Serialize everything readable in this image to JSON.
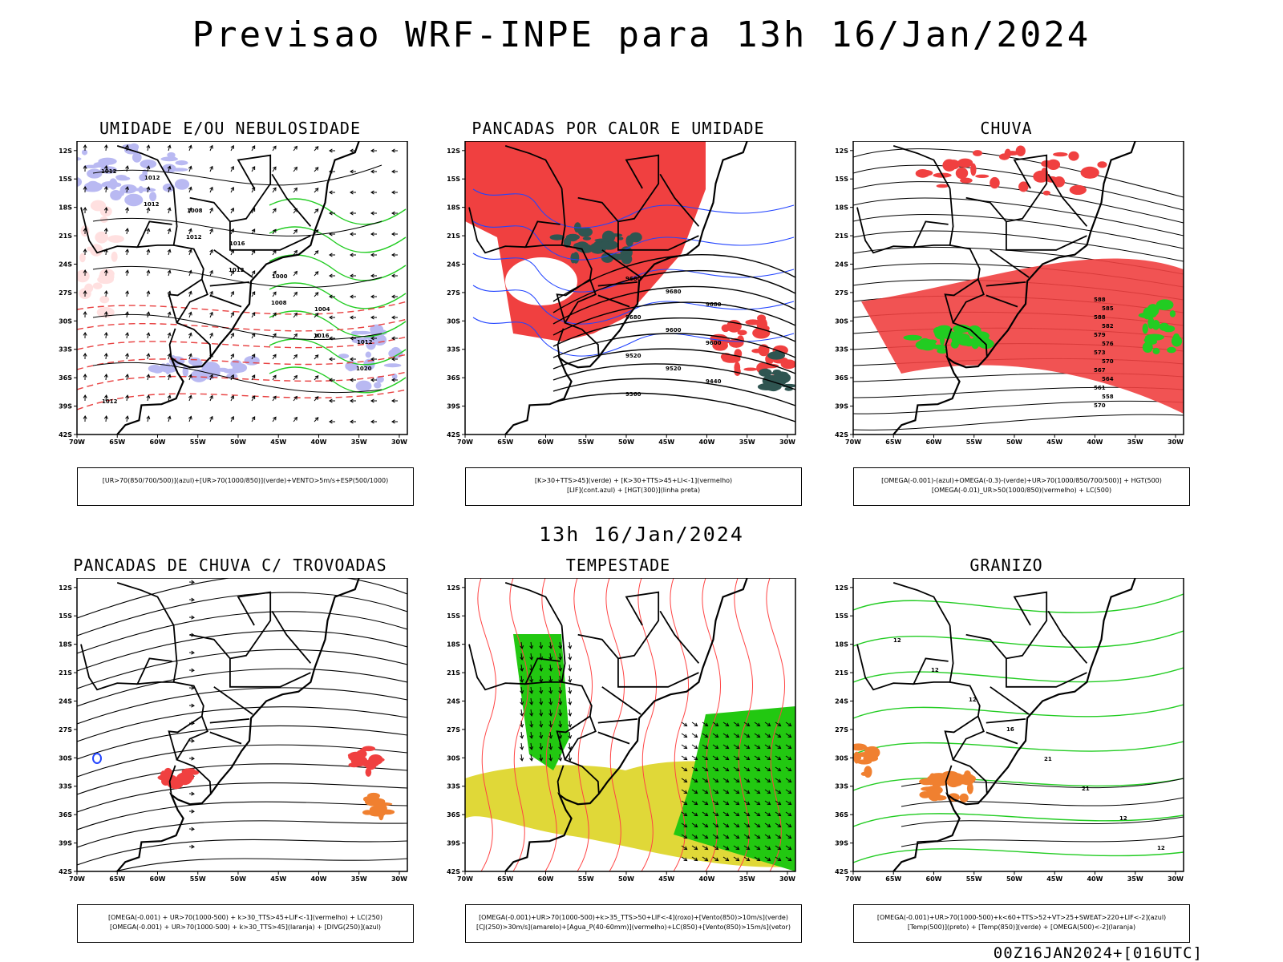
{
  "header": {
    "title": "Previsao WRF-INPE  para 13h 16/Jan/2024",
    "subtitle": "13h 16/Jan/2024",
    "footer": "00Z16JAN2024+[016UTC]"
  },
  "axes": {
    "lat_labels": [
      "12S",
      "15S",
      "18S",
      "21S",
      "24S",
      "27S",
      "30S",
      "33S",
      "36S",
      "39S",
      "42S"
    ],
    "lon_labels": [
      "70W",
      "65W",
      "60W",
      "55W",
      "50W",
      "45W",
      "40W",
      "35W",
      "30W"
    ]
  },
  "panels": [
    {
      "id": "umidade",
      "title": "UMIDADE E/OU NEBULOSIDADE",
      "legend": [
        "[UR>70(850/700/500)](azul)+[UR>70(1000/850)](verde)+VENTO>5m/s+ESP(500/1000)"
      ],
      "contour_labels": [
        "1012",
        "1012",
        "1012",
        "1012",
        "1008",
        "1016",
        "1020",
        "1012",
        "1012",
        "1008",
        "1016",
        "1000",
        "1004",
        "1012"
      ]
    },
    {
      "id": "pancadas-calor",
      "title": "PANCADAS POR CALOR E UMIDADE",
      "legend": [
        "[K>30+TTS>45](verde) + [K>30+TTS>45+LI<-1](vermelho)",
        "[LIF](cont.azul) + [HGT(300)](linha preta)"
      ],
      "contour_labels": [
        "9680",
        "9680",
        "9680",
        "9680",
        "9600",
        "9600",
        "9520",
        "9520",
        "9440",
        "9360",
        "9280",
        "9200",
        "9680"
      ]
    },
    {
      "id": "chuva",
      "title": "CHUVA",
      "legend": [
        "[OMEGA(-0.001)-(azul)+OMEGA(-0.3)-(verde)+UR>70(1000/850/700/500)] + HGT(500)",
        "[OMEGA(-0.01)_UR>50(1000/850)(vermelho) + LC(500)"
      ],
      "contour_labels": [
        "588",
        "585",
        "588",
        "582",
        "579",
        "576",
        "573",
        "570",
        "567",
        "564",
        "561",
        "558",
        "570"
      ]
    },
    {
      "id": "trovoadas",
      "title": "PANCADAS DE CHUVA C/ TROVOADAS",
      "legend": [
        "[OMEGA(-0.001) + UR>70(1000-500) + k>30_TTS>45+LIF<-1](vermelho) + LC(250)",
        "[OMEGA(-0.001) + UR>70(1000-500) + k>30_TTS>45](laranja) + [DIVG(250)](azul)"
      ],
      "contour_labels": []
    },
    {
      "id": "tempestade",
      "title": "TEMPESTADE",
      "legend": [
        "[OMEGA(-0.001)+UR>70(1000-500)+k>35_TTS>50+LIF<-4](roxo)+[Vento(850)>10m/s](verde)",
        "[CJ(250)>30m/s](amarelo)+[Agua_P(40-60mm)](vermelho)+LC(850)+[Vento(850)>15m/s](vetor)"
      ],
      "contour_labels": []
    },
    {
      "id": "granizo",
      "title": "GRANIZO",
      "legend": [
        "[OMEGA(-0.001)+UR>70(1000-500)+k<60+TTS>52+VT>25+SWEAT>220+LIF<-2](azul)",
        "[Temp(500)](preto) + [Temp(850)](verde) + [OMEGA(500)<-2](laranja)"
      ],
      "contour_labels": [
        "12",
        "12",
        "12",
        "16",
        "21",
        "21",
        "12",
        "12"
      ]
    }
  ],
  "colors": {
    "blue_fill": "#b9b9f2",
    "green_line": "#22cc22",
    "red_fill": "#f04040",
    "dark_teal": "#2f5551",
    "yellow": "#e0d838",
    "bright_green": "#22c811",
    "orange": "#f08030",
    "blue_line": "#2244ff",
    "red_line": "#ff4444"
  }
}
